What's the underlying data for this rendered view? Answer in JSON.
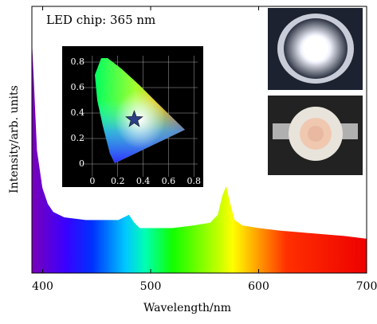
{
  "chart_data": [
    {
      "type": "area",
      "annotation": "LED chip: 365 nm",
      "xlabel": "Wavelength/nm",
      "ylabel": "Intensity/arb. units",
      "x": [
        390,
        392,
        395,
        400,
        405,
        410,
        420,
        440,
        460,
        470,
        475,
        480,
        485,
        490,
        500,
        520,
        540,
        555,
        562,
        566,
        570,
        574,
        578,
        585,
        600,
        620,
        650,
        680,
        700
      ],
      "values": [
        0.9,
        0.73,
        0.46,
        0.32,
        0.26,
        0.23,
        0.21,
        0.2,
        0.2,
        0.2,
        0.21,
        0.22,
        0.19,
        0.17,
        0.17,
        0.17,
        0.18,
        0.19,
        0.22,
        0.29,
        0.33,
        0.26,
        0.2,
        0.18,
        0.17,
        0.16,
        0.15,
        0.14,
        0.13
      ],
      "xlim": [
        390,
        700
      ],
      "xticks": [
        400,
        500,
        600,
        700
      ],
      "ylim": [
        0,
        1
      ]
    },
    {
      "type": "scatter",
      "x": [
        0.33
      ],
      "values": [
        0.35
      ],
      "color": "#2b3f86",
      "xlim": [
        -0.1,
        0.83
      ],
      "xticks": [
        0,
        0.2,
        0.4,
        0.6,
        0.8
      ],
      "ylim": [
        -0.1,
        0.85
      ],
      "yticks": [
        0,
        0.2,
        0.4,
        0.6,
        0.8
      ],
      "grid": true
    }
  ]
}
